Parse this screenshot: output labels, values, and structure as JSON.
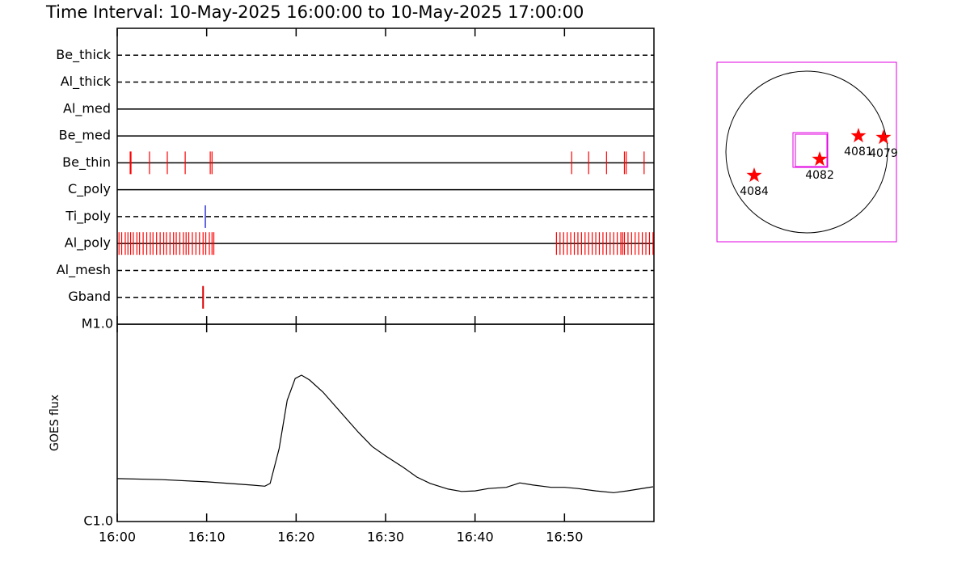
{
  "chart_data": [
    {
      "type": "timeline",
      "title": "Time Interval: 10-May-2025 16:00:00 to 10-May-2025 17:00:00",
      "xlim": [
        0,
        60
      ],
      "rows": [
        {
          "name": "Be_thick",
          "style": "dashed",
          "color": "#ff0000",
          "events": []
        },
        {
          "name": "Al_thick",
          "style": "dashed",
          "color": "#ff0000",
          "events": []
        },
        {
          "name": "Al_med",
          "style": "solid",
          "color": "#ff0000",
          "events": []
        },
        {
          "name": "Be_med",
          "style": "solid",
          "color": "#ff0000",
          "events": []
        },
        {
          "name": "Be_thin",
          "style": "solid",
          "color": "#ff0000",
          "events": [
            1.45,
            1.54,
            3.61,
            5.6,
            7.6,
            10.4,
            10.6,
            50.8,
            52.7,
            54.7,
            56.7,
            56.9,
            58.9
          ]
        },
        {
          "name": "C_poly",
          "style": "solid",
          "color": "#ff0000",
          "events": []
        },
        {
          "name": "Ti_poly",
          "style": "dashed",
          "color": "#0000cc",
          "events": [
            9.85
          ]
        },
        {
          "name": "Al_poly",
          "style": "solid",
          "color": "#ff0000",
          "events": [
            0.2,
            0.5,
            0.9,
            1.2,
            1.5,
            1.8,
            2.2,
            2.5,
            2.9,
            3.3,
            3.7,
            4.0,
            4.4,
            4.8,
            5.2,
            5.5,
            5.9,
            6.3,
            6.6,
            7.0,
            7.4,
            7.7,
            8.0,
            8.4,
            8.8,
            9.2,
            9.6,
            9.9,
            10.3,
            10.6,
            10.8,
            49.1,
            49.5,
            49.9,
            50.3,
            50.7,
            51.1,
            51.5,
            51.9,
            52.3,
            52.7,
            53.1,
            53.5,
            53.9,
            54.3,
            54.7,
            55.1,
            55.5,
            55.9,
            56.3,
            56.5,
            56.7,
            57.1,
            57.5,
            57.9,
            58.3,
            58.7,
            59.1,
            59.5,
            59.9
          ]
        },
        {
          "name": "Al_mesh",
          "style": "dashed",
          "color": "#ff0000",
          "events": []
        },
        {
          "name": "Gband",
          "style": "dashed",
          "color": "#dd0000",
          "events": [
            9.6
          ]
        }
      ]
    },
    {
      "type": "line",
      "y_label": "GOES flux",
      "log_scale": true,
      "color": "#000000",
      "x": [
        0,
        5,
        10,
        15,
        16.5,
        17.1,
        18.1,
        19.0,
        19.9,
        20.6,
        21.5,
        23,
        25,
        27,
        28.5,
        30,
        32,
        33.5,
        35,
        37,
        38.5,
        40,
        41.5,
        43.5,
        45,
        46.5,
        48.5,
        50,
        51.5,
        53.5,
        55.5,
        57,
        59.9
      ],
      "values": [
        1.65e-06,
        1.63e-06,
        1.59e-06,
        1.53e-06,
        1.51e-06,
        1.56e-06,
        2.34e-06,
        4.12e-06,
        5.31e-06,
        5.52e-06,
        5.22e-06,
        4.53e-06,
        3.57e-06,
        2.82e-06,
        2.4e-06,
        2.15e-06,
        1.88e-06,
        1.68e-06,
        1.56e-06,
        1.46e-06,
        1.42e-06,
        1.43e-06,
        1.47e-06,
        1.49e-06,
        1.57e-06,
        1.53e-06,
        1.49e-06,
        1.49e-06,
        1.47e-06,
        1.43e-06,
        1.4e-06,
        1.43e-06,
        1.5e-06
      ],
      "xlim": [
        0,
        60
      ],
      "xticks": [
        {
          "value": 0,
          "label": "16:00"
        },
        {
          "value": 10,
          "label": "16:10"
        },
        {
          "value": 20,
          "label": "16:20"
        },
        {
          "value": 30,
          "label": "16:30"
        },
        {
          "value": 40,
          "label": "16:40"
        },
        {
          "value": 50,
          "label": "16:50"
        }
      ],
      "ylim": [
        1e-06,
        1e-05
      ],
      "yticks": [
        {
          "value": 1e-06,
          "label": "C1.0"
        },
        {
          "value": 1e-05,
          "label": "M1.0"
        }
      ]
    },
    {
      "type": "scatter",
      "color": "#ff0000",
      "labels": [
        "4084",
        "4082",
        "4081",
        "4079"
      ],
      "x": [
        -644,
        159,
        634,
        941
      ],
      "y": [
        -287,
        -89,
        198,
        178
      ],
      "xlim": [
        -1100,
        1100
      ],
      "ylim": [
        -1100,
        1100
      ]
    }
  ]
}
